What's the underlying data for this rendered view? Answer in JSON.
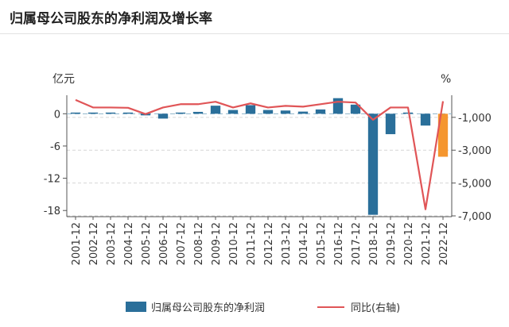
{
  "title": "归属母公司股东的净利润及增长率",
  "chart_data": {
    "type": "bar+line",
    "categories": [
      "2001-12",
      "2002-12",
      "2003-12",
      "2004-12",
      "2005-12",
      "2006-12",
      "2007-12",
      "2008-12",
      "2009-12",
      "2010-12",
      "2011-12",
      "2012-12",
      "2013-12",
      "2014-12",
      "2015-12",
      "2016-12",
      "2017-12",
      "2018-12",
      "2019-12",
      "2020-12",
      "2021-12",
      "2022-12"
    ],
    "series": [
      {
        "name": "归属母公司股东的净利润",
        "axis": "left",
        "kind": "bar",
        "values": [
          0.05,
          0.05,
          0.05,
          0.05,
          -0.3,
          -0.9,
          0.15,
          0.35,
          1.5,
          0.7,
          1.6,
          0.7,
          0.6,
          0.4,
          0.8,
          2.9,
          1.7,
          -18.8,
          -3.8,
          0.1,
          -2.2,
          -8.0
        ],
        "highlight_index": 21
      },
      {
        "name": "同比(右轴)",
        "axis": "right",
        "kind": "line",
        "values": [
          60,
          -400,
          -400,
          -420,
          -800,
          -400,
          -200,
          -200,
          -50,
          -400,
          -150,
          -400,
          -300,
          -350,
          -200,
          -50,
          -100,
          -1150,
          -400,
          -400,
          -6600,
          -20
        ]
      }
    ],
    "left_axis": {
      "label": "亿元",
      "ticks": [
        0,
        -6,
        -12,
        -18
      ],
      "ylim": [
        -19,
        3
      ]
    },
    "right_axis": {
      "label": "%",
      "ticks": [
        "-1,000",
        "-3,000",
        "-5,000",
        "-7,000"
      ],
      "tick_values": [
        -1000,
        -3000,
        -5000,
        -7000
      ],
      "ylim": [
        -7000,
        200
      ]
    },
    "colors": {
      "bar": "#2a6f9a",
      "bar_highlight": "#f5962f",
      "line": "#e05557"
    }
  }
}
